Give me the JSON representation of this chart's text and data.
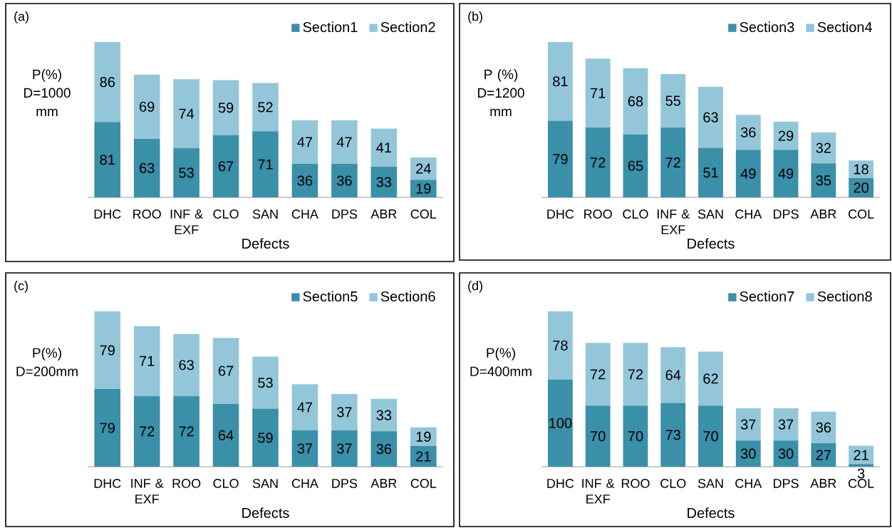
{
  "chart_data": [
    {
      "type": "bar",
      "stacked": true,
      "title": "(a)",
      "ylabel": "P(%) D=1000 mm",
      "xlabel": "Defects",
      "data_labels": true,
      "legend": "top right",
      "categories": [
        "DHC",
        "ROO",
        "INF & EXF",
        "CLO",
        "SAN",
        "CHA",
        "DPS",
        "ABR",
        "COL"
      ],
      "series": [
        {
          "name": "Section1",
          "color": "#3a8fa9",
          "values": [
            81,
            63,
            53,
            67,
            71,
            36,
            36,
            33,
            19
          ]
        },
        {
          "name": "Section2",
          "color": "#93c6d9",
          "values": [
            86,
            69,
            74,
            59,
            52,
            47,
            47,
            41,
            24
          ]
        }
      ]
    },
    {
      "type": "bar",
      "stacked": true,
      "title": "(b)",
      "ylabel": "P (%) D=1200 mm",
      "xlabel": "Defects",
      "data_labels": true,
      "legend": "top right",
      "categories": [
        "DHC",
        "ROO",
        "CLO",
        "INF & EXF",
        "SAN",
        "CHA",
        "DPS",
        "ABR",
        "COL"
      ],
      "series": [
        {
          "name": "Section3",
          "color": "#3a8fa9",
          "values": [
            79,
            72,
            65,
            72,
            51,
            49,
            49,
            35,
            20
          ]
        },
        {
          "name": "Section4",
          "color": "#93c6d9",
          "values": [
            81,
            71,
            68,
            55,
            63,
            36,
            29,
            32,
            18
          ]
        }
      ]
    },
    {
      "type": "bar",
      "stacked": true,
      "title": "(c)",
      "ylabel": "P(%) D=200mm",
      "xlabel": "Defects",
      "data_labels": true,
      "legend": "top right",
      "categories": [
        "DHC",
        "INF & EXF",
        "ROO",
        "CLO",
        "SAN",
        "CHA",
        "DPS",
        "ABR",
        "COL"
      ],
      "series": [
        {
          "name": "Section5",
          "color": "#3a8fa9",
          "values": [
            79,
            72,
            72,
            64,
            59,
            37,
            37,
            36,
            21
          ]
        },
        {
          "name": "Section6",
          "color": "#93c6d9",
          "values": [
            79,
            71,
            63,
            67,
            53,
            47,
            37,
            33,
            19
          ]
        }
      ]
    },
    {
      "type": "bar",
      "stacked": true,
      "title": "(d)",
      "ylabel": "P(%) D=400mm",
      "xlabel": "Defects",
      "data_labels": true,
      "legend": "top right",
      "categories": [
        "DHC",
        "INF & EXF",
        "ROO",
        "CLO",
        "SAN",
        "CHA",
        "DPS",
        "ABR",
        "COL"
      ],
      "series": [
        {
          "name": "Section7",
          "color": "#3a8fa9",
          "values": [
            100,
            70,
            70,
            73,
            70,
            30,
            30,
            27,
            3
          ]
        },
        {
          "name": "Section8",
          "color": "#93c6d9",
          "values": [
            78,
            72,
            72,
            64,
            62,
            37,
            37,
            36,
            21
          ]
        }
      ]
    }
  ]
}
